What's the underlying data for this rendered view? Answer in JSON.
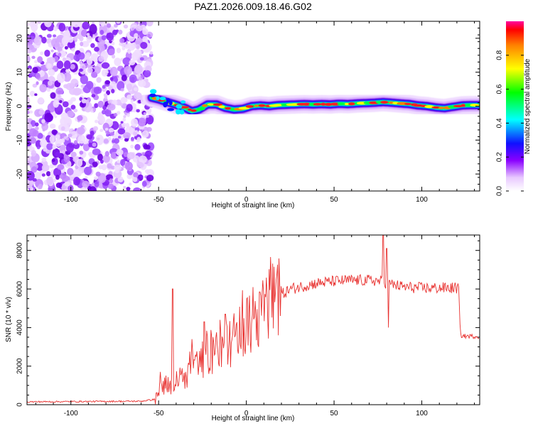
{
  "title": "PAZ1.2026.009.18.46.G02",
  "chart_data": [
    {
      "type": "heatmap",
      "xlabel": "Height of straight line (km)",
      "ylabel": "Frequency (Hz)",
      "xlim": [
        -125,
        133
      ],
      "ylim": [
        -25,
        25
      ],
      "xticks": [
        -100,
        -50,
        0,
        50,
        100
      ],
      "yticks": [
        -20,
        -10,
        0,
        10,
        20
      ],
      "noise_region_x": [
        -125,
        -54
      ],
      "ridge": {
        "x": [
          -54,
          -50,
          -45,
          -40,
          -35,
          -31,
          -27,
          -22,
          -17,
          -12,
          -7,
          -2,
          3,
          8,
          13,
          18,
          23,
          28,
          33,
          38,
          43,
          48,
          53,
          58,
          63,
          68,
          73,
          78,
          83,
          88,
          93,
          98,
          103,
          108,
          113,
          118,
          123,
          128,
          133
        ],
        "y": [
          2.5,
          2.0,
          1.2,
          0.4,
          -0.5,
          -1.5,
          -1.0,
          0.5,
          0.5,
          -0.5,
          -1.0,
          -0.8,
          0.0,
          0.2,
          0.0,
          0.3,
          0.4,
          0.5,
          0.6,
          0.5,
          0.6,
          0.5,
          0.7,
          0.6,
          0.8,
          0.9,
          1.0,
          1.2,
          1.0,
          0.8,
          0.6,
          0.2,
          0.0,
          -0.4,
          -0.6,
          -0.2,
          0.2,
          0.3,
          0.3
        ]
      },
      "colorbar": {
        "label": "Normalized spectral amplitude",
        "ticks": [
          "0.0",
          "0.2",
          "0.4",
          "0.6",
          "0.8"
        ],
        "range": [
          0,
          1
        ]
      }
    },
    {
      "type": "line",
      "xlabel": "Height of straight line (km)",
      "ylabel": "SNR (10 * v/v)",
      "xlim": [
        -125,
        133
      ],
      "ylim": [
        0,
        8800
      ],
      "xticks": [
        -100,
        -50,
        0,
        50,
        100
      ],
      "yticks": [
        0,
        2000,
        4000,
        6000,
        8000
      ],
      "series": [
        {
          "color": "#e8312f",
          "trend_x": [
            -125,
            -60,
            -52,
            -50,
            -45,
            -40,
            -35,
            -30,
            -25,
            -20,
            -15,
            -10,
            -5,
            0,
            5,
            10,
            15,
            20,
            25,
            30,
            40,
            50,
            60,
            70,
            78,
            80,
            85,
            90,
            100,
            110,
            121,
            122,
            125,
            133
          ],
          "trend_y": [
            150,
            180,
            280,
            600,
            900,
            1200,
            1500,
            1800,
            2100,
            2500,
            2800,
            3200,
            3600,
            4000,
            4400,
            4800,
            5300,
            5700,
            6000,
            6100,
            6300,
            6400,
            6450,
            6450,
            6400,
            6300,
            6200,
            6100,
            6050,
            6050,
            6050,
            3600,
            3550,
            3550
          ],
          "spikes": [
            {
              "x": -49,
              "y": 1700
            },
            {
              "x": -42,
              "y": 6000
            },
            {
              "x": -31,
              "y": 3400
            },
            {
              "x": -24,
              "y": 4300
            },
            {
              "x": -15,
              "y": 4400
            },
            {
              "x": -12,
              "y": 4700
            },
            {
              "x": 78,
              "y": 8800
            },
            {
              "x": 80,
              "y": 8100
            },
            {
              "x": 81,
              "y": 4000
            }
          ]
        }
      ]
    }
  ]
}
